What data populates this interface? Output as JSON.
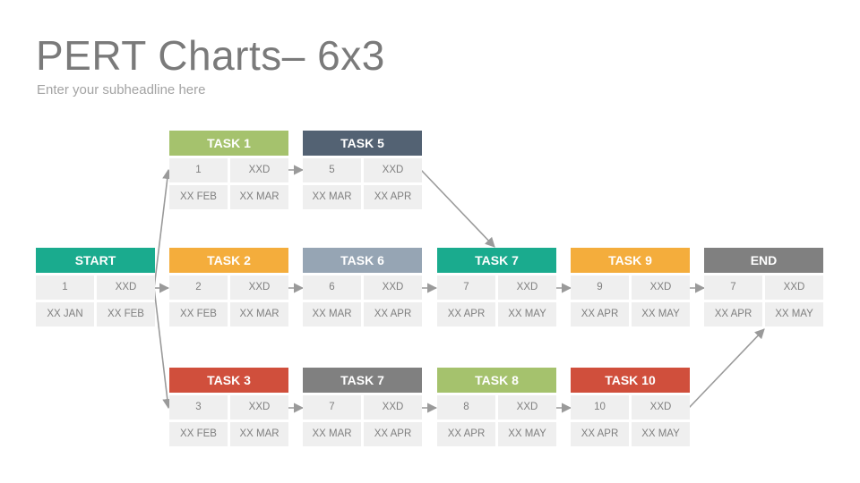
{
  "page": {
    "title": "PERT Charts– 6x3",
    "subtitle": "Enter your subheadline here"
  },
  "colors": {
    "teal": "#1aab8e",
    "green": "#a5c26d",
    "navy": "#536273",
    "orange": "#f4ad3c",
    "slate": "#96a5b4",
    "red": "#d04f3c",
    "gray": "#808080",
    "cell": "#efefef",
    "cell_text": "#7f7f7f",
    "arrow": "#9a9a9a"
  },
  "nodes": {
    "start": {
      "label": "START",
      "id": "1",
      "duration": "XXD",
      "from": "XX JAN",
      "to": "XX FEB",
      "color": "#1aab8e"
    },
    "task1": {
      "label": "TASK 1",
      "id": "1",
      "duration": "XXD",
      "from": "XX FEB",
      "to": "XX MAR",
      "color": "#a5c26d"
    },
    "task2": {
      "label": "TASK 2",
      "id": "2",
      "duration": "XXD",
      "from": "XX FEB",
      "to": "XX MAR",
      "color": "#f4ad3c"
    },
    "task3": {
      "label": "TASK 3",
      "id": "3",
      "duration": "XXD",
      "from": "XX FEB",
      "to": "XX MAR",
      "color": "#d04f3c"
    },
    "task5": {
      "label": "TASK 5",
      "id": "5",
      "duration": "XXD",
      "from": "XX MAR",
      "to": "XX APR",
      "color": "#536273"
    },
    "task6": {
      "label": "TASK 6",
      "id": "6",
      "duration": "XXD",
      "from": "XX MAR",
      "to": "XX APR",
      "color": "#96a5b4"
    },
    "task7b": {
      "label": "TASK 7",
      "id": "7",
      "duration": "XXD",
      "from": "XX MAR",
      "to": "XX APR",
      "color": "#808080"
    },
    "task7": {
      "label": "TASK 7",
      "id": "7",
      "duration": "XXD",
      "from": "XX APR",
      "to": "XX MAY",
      "color": "#1aab8e"
    },
    "task8": {
      "label": "TASK 8",
      "id": "8",
      "duration": "XXD",
      "from": "XX APR",
      "to": "XX MAY",
      "color": "#a5c26d"
    },
    "task9": {
      "label": "TASK 9",
      "id": "9",
      "duration": "XXD",
      "from": "XX APR",
      "to": "XX MAY",
      "color": "#f4ad3c"
    },
    "task10": {
      "label": "TASK 10",
      "id": "10",
      "duration": "XXD",
      "from": "XX APR",
      "to": "XX MAY",
      "color": "#d04f3c"
    },
    "end": {
      "label": "END",
      "id": "7",
      "duration": "XXD",
      "from": "XX APR",
      "to": "XX MAY",
      "color": "#808080"
    }
  },
  "edges": [
    [
      "start",
      "task1"
    ],
    [
      "start",
      "task2"
    ],
    [
      "start",
      "task3"
    ],
    [
      "task1",
      "task5"
    ],
    [
      "task5",
      "task7"
    ],
    [
      "task2",
      "task6"
    ],
    [
      "task6",
      "task7"
    ],
    [
      "task7",
      "task9"
    ],
    [
      "task9",
      "end"
    ],
    [
      "task3",
      "task7b"
    ],
    [
      "task7b",
      "task8"
    ],
    [
      "task8",
      "task10"
    ],
    [
      "task10",
      "end"
    ]
  ]
}
